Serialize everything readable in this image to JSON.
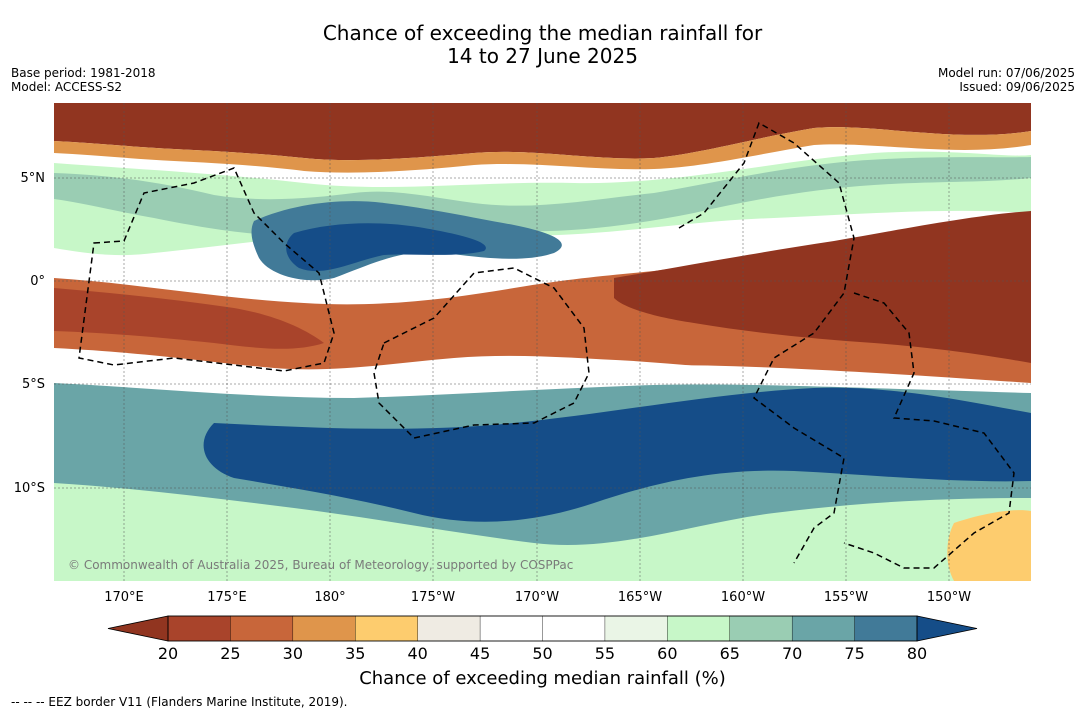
{
  "header": {
    "title_line1": "Chance of exceeding the median rainfall for",
    "title_line2": "14 to 27 June 2025",
    "base_period": "Base period: 1981-2018",
    "model": "Model: ACCESS-S2",
    "model_run": "Model run: 07/06/2025",
    "issued": "Issued: 09/06/2025"
  },
  "map": {
    "copyright": "© Commonwealth of Australia 2025, Bureau of Meteorology, supported by COSPPac",
    "lat_labels": [
      "5°N",
      "0°",
      "5°S",
      "10°S"
    ],
    "lon_labels": [
      "170°E",
      "175°E",
      "180°",
      "175°W",
      "170°W",
      "165°W",
      "160°W",
      "155°W",
      "150°W"
    ]
  },
  "colorbar": {
    "ticks": [
      "20",
      "25",
      "30",
      "35",
      "40",
      "45",
      "50",
      "55",
      "60",
      "65",
      "70",
      "75",
      "80"
    ],
    "colors": [
      "#a9442b",
      "#c8663a",
      "#df954b",
      "#fdcc6e",
      "#efebe3",
      "#ffffff",
      "#ffffff",
      "#eaf5e6",
      "#c7f7c8",
      "#9acdb3",
      "#6aa5a7",
      "#417a98"
    ],
    "under_color": "#913520",
    "over_color": "#154d88",
    "label": "Chance of exceeding median rainfall (%)"
  },
  "footnote": "--  --  -- EEZ border V11 (Flanders Marine Institute, 2019).",
  "chart_data": {
    "type": "heatmap",
    "title": "Chance of exceeding the median rainfall for 14 to 27 June 2025",
    "colorbar_label": "Chance of exceeding median rainfall (%)",
    "value_range": [
      20,
      80
    ],
    "xlim": [
      "167.5°E",
      "147°W"
    ],
    "ylim": [
      "14°S",
      "8.5°N"
    ],
    "bands": [
      {
        "latitude": "7°N to 8.5°N",
        "value": 20
      },
      {
        "latitude": "5°N to 6°N",
        "value": 65
      },
      {
        "latitude": "1°N to 4°N, 175°E to 170°W",
        "value": 80
      },
      {
        "latitude": "2°N to 0°, 165°W to 147°W",
        "value": 20
      },
      {
        "latitude": "0° to 3.5°S",
        "value": 25
      },
      {
        "latitude": "4.5°S to 5.5°S",
        "value": 50
      },
      {
        "latitude": "7°S to 11°S",
        "value": 80
      },
      {
        "latitude": "12°S to 14°S",
        "value": 60
      }
    ]
  }
}
